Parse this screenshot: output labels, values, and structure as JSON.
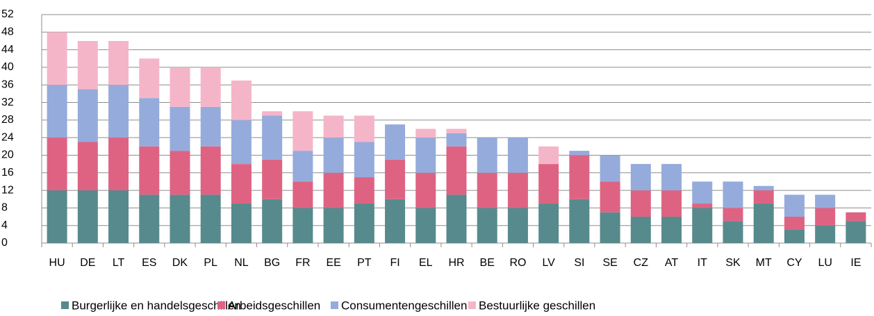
{
  "chart_data": {
    "type": "stacked_bar",
    "categories": [
      "HU",
      "DE",
      "LT",
      "ES",
      "DK",
      "PL",
      "NL",
      "BG",
      "FR",
      "EE",
      "PT",
      "FI",
      "EL",
      "HR",
      "BE",
      "RO",
      "LV",
      "SI",
      "SE",
      "CZ",
      "AT",
      "IT",
      "SK",
      "MT",
      "CY",
      "LU",
      "IE"
    ],
    "series": [
      {
        "name": "Burgerlijke en handelsgeschillen",
        "color": "#578a8c",
        "values": [
          12,
          12,
          12,
          11,
          11,
          11,
          9,
          10,
          8,
          8,
          9,
          10,
          8,
          11,
          8,
          8,
          9,
          10,
          7,
          6,
          6,
          8,
          5,
          9,
          3,
          4,
          5
        ]
      },
      {
        "name": "Arbeidsgeschillen",
        "color": "#de6383",
        "values": [
          12,
          11,
          12,
          11,
          10,
          11,
          9,
          9,
          6,
          8,
          6,
          9,
          8,
          11,
          8,
          8,
          9,
          10,
          7,
          6,
          6,
          1,
          3,
          3,
          3,
          4,
          2
        ]
      },
      {
        "name": "Consumentengeschillen",
        "color": "#95abdb",
        "values": [
          12,
          12,
          12,
          11,
          10,
          9,
          10,
          10,
          7,
          8,
          8,
          8,
          8,
          3,
          8,
          8,
          0,
          1,
          6,
          6,
          6,
          5,
          6,
          1,
          5,
          3,
          0
        ]
      },
      {
        "name": "Bestuurlijke geschillen",
        "color": "#f5b5c9",
        "values": [
          12,
          11,
          10,
          9,
          9,
          9,
          9,
          1,
          9,
          5,
          6,
          0,
          2,
          1,
          0,
          0,
          4,
          0,
          0,
          0,
          0,
          0,
          0,
          0,
          0,
          0,
          0
        ]
      }
    ],
    "ylim": [
      0,
      52
    ],
    "yticks": [
      0,
      4,
      8,
      12,
      16,
      20,
      24,
      28,
      32,
      36,
      40,
      44,
      48,
      52
    ],
    "grid": true,
    "legend": "bottom"
  }
}
